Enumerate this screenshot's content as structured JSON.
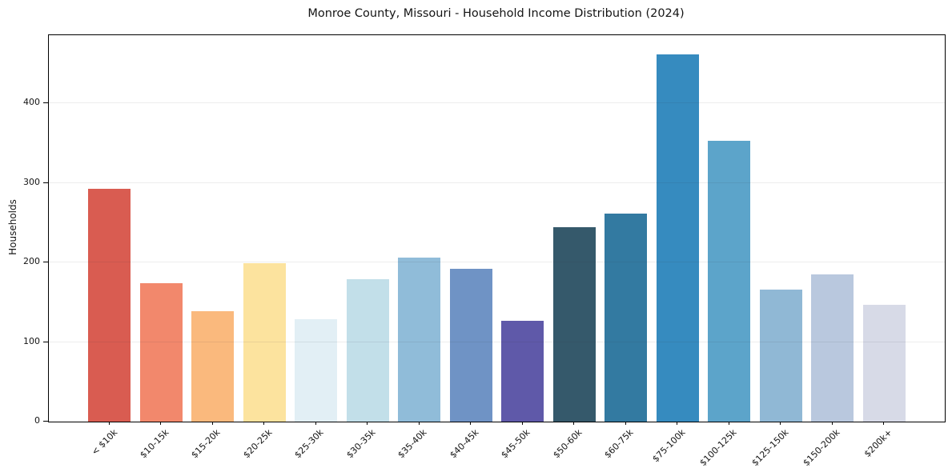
{
  "title": "Monroe County, Missouri - Household Income Distribution (2024)",
  "chart_data": {
    "type": "bar",
    "title": "Monroe County, Missouri - Household Income Distribution (2024)",
    "xlabel": "",
    "ylabel": "Households",
    "categories": [
      "< $10k",
      "$10-15k",
      "$15-20k",
      "$20-25k",
      "$25-30k",
      "$30-35k",
      "$35-40k",
      "$40-45k",
      "$45-50k",
      "$50-60k",
      "$60-75k",
      "$75-100k",
      "$100-125k",
      "$125-150k",
      "$150-200k",
      "$200k+"
    ],
    "values": [
      293,
      174,
      139,
      199,
      129,
      179,
      206,
      192,
      127,
      245,
      262,
      462,
      353,
      166,
      185,
      147
    ],
    "bar_colors": [
      "#d95c51",
      "#f2886c",
      "#fab97d",
      "#fce39e",
      "#e2eff5",
      "#c2dfe9",
      "#90bcd9",
      "#6f93c5",
      "#5f59a9",
      "#35596b",
      "#337aa1",
      "#368bbf",
      "#5ca4ca",
      "#90b8d5",
      "#b9c8de",
      "#d7dae7"
    ],
    "yticks": [
      0,
      100,
      200,
      300,
      400
    ],
    "ylim": [
      0,
      486
    ],
    "grid": "horizontal-only",
    "legend_position": "none",
    "background_color": "#ffffff",
    "spine_color": "#000000",
    "tick_label_rotation_deg": 45
  }
}
